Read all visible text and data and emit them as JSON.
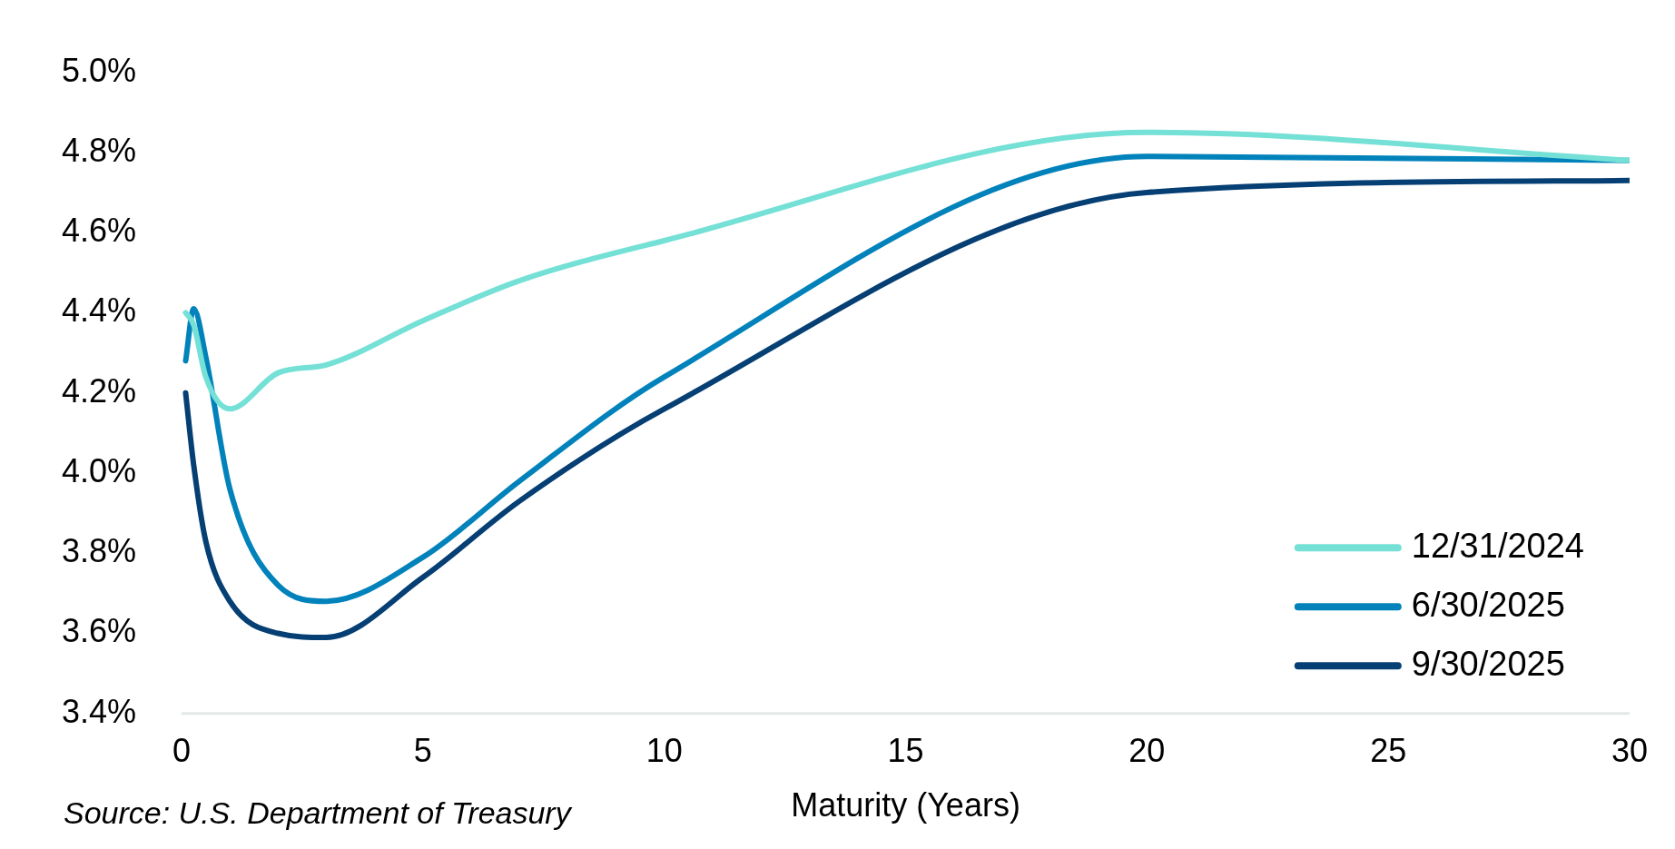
{
  "chart_data": {
    "type": "line",
    "xlabel": "Maturity (Years)",
    "annotations": [
      "Source: U.S. Department of Treasury"
    ],
    "x": [
      0.083,
      0.25,
      0.5,
      1,
      2,
      3,
      5,
      7,
      10,
      20,
      30
    ],
    "series": [
      {
        "name": "12/31/2024",
        "color": "#74e0d6",
        "values": [
          4.4,
          4.37,
          4.24,
          4.16,
          4.25,
          4.27,
          4.38,
          4.48,
          4.58,
          4.85,
          4.78
        ]
      },
      {
        "name": "6/30/2025",
        "color": "#0282bb",
        "values": [
          4.28,
          4.41,
          4.29,
          3.96,
          3.72,
          3.68,
          3.79,
          3.98,
          4.24,
          4.79,
          4.78
        ]
      },
      {
        "name": "9/30/2025",
        "color": "#053f73",
        "values": [
          4.2,
          4.02,
          3.83,
          3.68,
          3.6,
          3.59,
          3.74,
          3.93,
          4.16,
          4.7,
          4.73
        ]
      }
    ],
    "xlim": [
      0,
      30
    ],
    "xticks": [
      0,
      5,
      10,
      15,
      20,
      25,
      30
    ],
    "ylim": [
      3.4,
      5.0
    ],
    "yticks": [
      {
        "value": 3.4,
        "label": "3.4%"
      },
      {
        "value": 3.6,
        "label": "3.6%"
      },
      {
        "value": 3.8,
        "label": "3.8%"
      },
      {
        "value": 4.0,
        "label": "4.0%"
      },
      {
        "value": 4.2,
        "label": "4.2%"
      },
      {
        "value": 4.4,
        "label": "4.4%"
      },
      {
        "value": 4.6,
        "label": "4.6%"
      },
      {
        "value": 4.8,
        "label": "4.8%"
      },
      {
        "value": 5.0,
        "label": "5.0%"
      }
    ],
    "grid": false,
    "legend": "bottom right",
    "marker": "none",
    "line_style": "solid"
  }
}
